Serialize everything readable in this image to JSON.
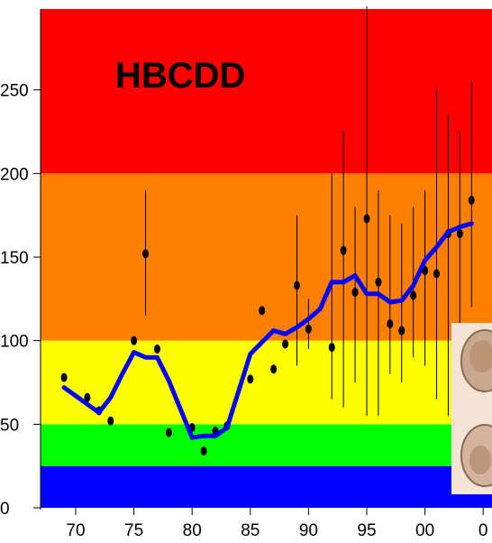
{
  "chart_data": {
    "type": "scatter",
    "title": "HBCDD",
    "xlabel": "",
    "ylabel": "",
    "x_tick_labels": [
      "70",
      "75",
      "80",
      "85",
      "90",
      "95",
      "00",
      "0"
    ],
    "y_tick_labels": [
      "0",
      "50",
      "100",
      "150",
      "200",
      "250"
    ],
    "xlim": [
      1968,
      2004
    ],
    "ylim": [
      0,
      300
    ],
    "grid": false,
    "legend": "none",
    "background_bands": [
      {
        "from": 0,
        "to": 25,
        "color": "#0000ff"
      },
      {
        "from": 25,
        "to": 50,
        "color": "#00ff00"
      },
      {
        "from": 50,
        "to": 100,
        "color": "#ffff00"
      },
      {
        "from": 100,
        "to": 200,
        "color": "#ff7f00"
      },
      {
        "from": 200,
        "to": 300,
        "color": "#ff0000"
      }
    ],
    "series": [
      {
        "kind": "points",
        "color": "#000000",
        "x": [
          1969,
          1971,
          1972,
          1973,
          1975,
          1976,
          1977,
          1978,
          1980,
          1981,
          1982,
          1983,
          1985,
          1986,
          1987,
          1988,
          1989,
          1990,
          1992,
          1993,
          1994,
          1995,
          1996,
          1997,
          1998,
          1999,
          2000,
          2001,
          2002,
          2003,
          2004
        ],
        "y": [
          78,
          66,
          58,
          52,
          100,
          152,
          95,
          45,
          48,
          34,
          46,
          49,
          77,
          118,
          83,
          98,
          133,
          107,
          96,
          154,
          129,
          173,
          135,
          110,
          106,
          127,
          142,
          140,
          164,
          164,
          184
        ],
        "err_low": [
          null,
          null,
          null,
          null,
          null,
          115,
          null,
          null,
          null,
          null,
          null,
          null,
          null,
          null,
          null,
          null,
          85,
          95,
          65,
          60,
          75,
          55,
          55,
          80,
          75,
          90,
          85,
          65,
          55,
          95,
          120
        ],
        "err_high": [
          null,
          null,
          null,
          null,
          null,
          190,
          null,
          null,
          null,
          null,
          null,
          null,
          null,
          null,
          null,
          null,
          175,
          125,
          200,
          225,
          180,
          300,
          190,
          175,
          170,
          180,
          190,
          250,
          235,
          225,
          255
        ]
      },
      {
        "kind": "line",
        "color": "#0000ff",
        "x": [
          1969,
          1970,
          1971,
          1972,
          1973,
          1974,
          1975,
          1976,
          1977,
          1978,
          1979,
          1980,
          1981,
          1982,
          1983,
          1984,
          1985,
          1986,
          1987,
          1988,
          1989,
          1990,
          1991,
          1992,
          1993,
          1994,
          1995,
          1996,
          1997,
          1998,
          1999,
          2000,
          2001,
          2002,
          2003,
          2004
        ],
        "y": [
          72,
          67,
          62,
          57,
          66,
          80,
          93,
          90,
          90,
          76,
          59,
          42,
          43,
          43,
          48,
          70,
          92,
          99,
          106,
          104,
          108,
          113,
          119,
          135,
          135,
          139,
          128,
          128,
          123,
          124,
          133,
          148,
          156,
          165,
          168,
          170
        ]
      }
    ],
    "inset_image": {
      "description_icon": "eggs-photo-icon"
    }
  }
}
